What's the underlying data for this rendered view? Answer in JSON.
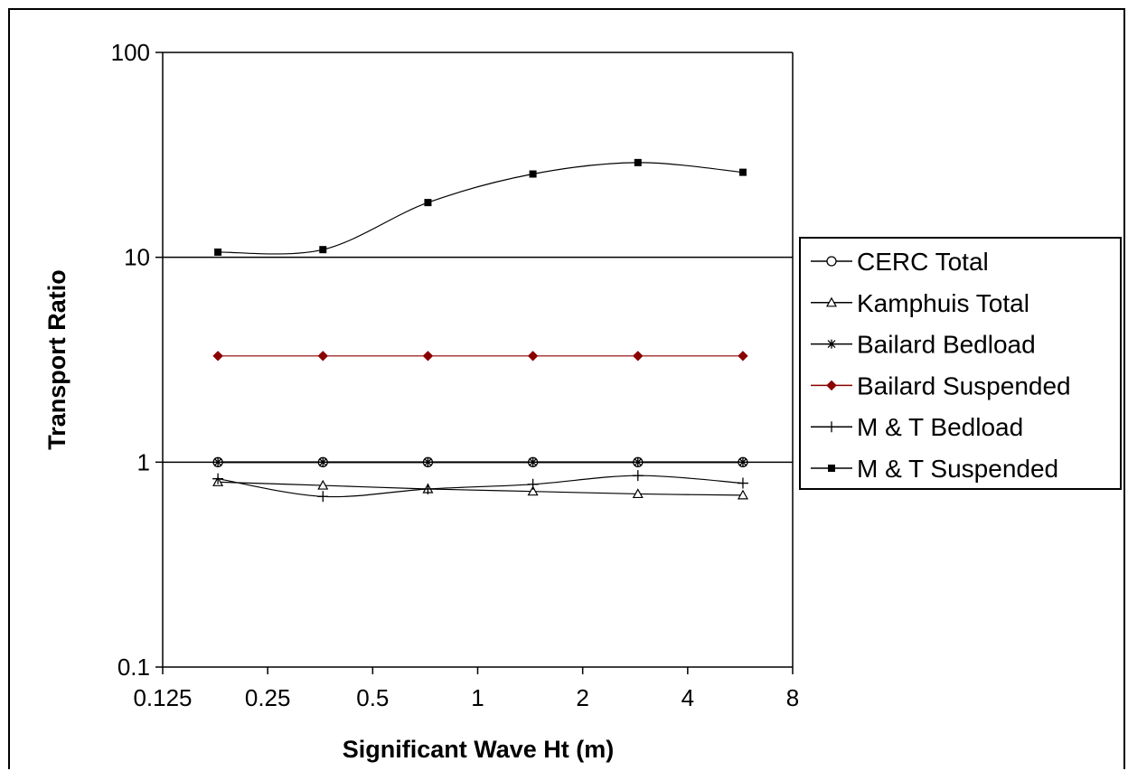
{
  "chart_data": {
    "type": "line",
    "xlabel": "Significant Wave Ht (m)",
    "ylabel": "Transport Ratio",
    "x_scale": "log2",
    "y_scale": "log10",
    "xlim": [
      0.125,
      8
    ],
    "ylim": [
      0.1,
      100
    ],
    "x_ticks": [
      "0.125",
      "0.25",
      "0.5",
      "1",
      "2",
      "4",
      "8"
    ],
    "y_ticks": [
      "0.1",
      "1",
      "10",
      "100"
    ],
    "gridlines_y": [
      1,
      10
    ],
    "legend_position": "right",
    "x": [
      0.18,
      0.36,
      0.72,
      1.44,
      2.88,
      5.76
    ],
    "series": [
      {
        "name": "CERC Total",
        "marker": "circle-open",
        "color": "#000000",
        "values": [
          1,
          1,
          1,
          1,
          1,
          1
        ]
      },
      {
        "name": "Kamphuis Total",
        "marker": "triangle-open",
        "color": "#000000",
        "values": [
          0.8,
          0.77,
          0.74,
          0.72,
          0.7,
          0.69
        ]
      },
      {
        "name": "Bailard Bedload",
        "marker": "star",
        "color": "#000000",
        "values": [
          1,
          1,
          1,
          1,
          1,
          1
        ]
      },
      {
        "name": "Bailard Suspended",
        "marker": "diamond",
        "color": "#8B0000",
        "values": [
          3.3,
          3.3,
          3.3,
          3.3,
          3.3,
          3.3
        ]
      },
      {
        "name": "M & T Bedload",
        "marker": "plus",
        "color": "#000000",
        "values": [
          0.83,
          0.68,
          0.74,
          0.78,
          0.86,
          0.79
        ]
      },
      {
        "name": "M & T Suspended",
        "marker": "square",
        "color": "#000000",
        "values": [
          10.6,
          10.9,
          18.5,
          25.5,
          29,
          26
        ]
      }
    ]
  }
}
